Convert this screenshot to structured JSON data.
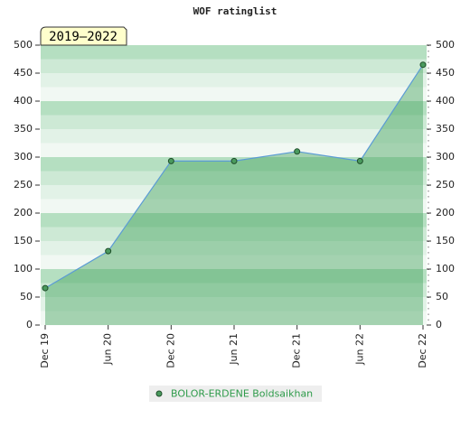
{
  "chart_data": {
    "type": "area",
    "title": "WOF ratinglist",
    "annotation": "2019–2022",
    "categories": [
      "Dec 19",
      "Jun 20",
      "Dec 20",
      "Jun 21",
      "Dec 21",
      "Jun 22",
      "Dec 22"
    ],
    "series": [
      {
        "name": "BOLOR-ERDENE Boldsaikhan",
        "color": "#5b9bd5",
        "values": [
          66,
          132,
          293,
          293,
          310,
          293,
          465
        ]
      }
    ],
    "ylim": [
      0,
      500
    ],
    "yticks": [
      0,
      50,
      100,
      150,
      200,
      250,
      300,
      350,
      400,
      450,
      500
    ],
    "y2lim": [
      0,
      500
    ],
    "y2ticks": [
      0,
      50,
      100,
      150,
      200,
      250,
      300,
      350,
      400,
      450,
      500
    ]
  }
}
